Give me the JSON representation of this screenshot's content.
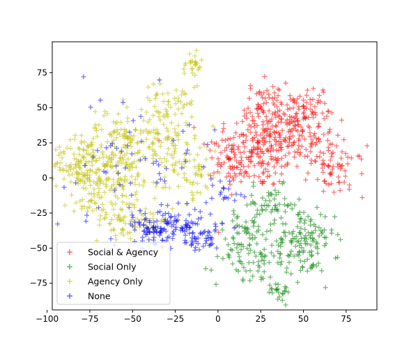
{
  "chart_data": {
    "type": "scatter",
    "title": "",
    "xlabel": "",
    "ylabel": "",
    "xlim": [
      -97,
      93
    ],
    "ylim": [
      -94,
      97
    ],
    "xticks": [
      -100,
      -75,
      -50,
      -25,
      0,
      25,
      50,
      75
    ],
    "yticks": [
      -75,
      -50,
      -25,
      0,
      25,
      50,
      75
    ],
    "xtick_labels": [
      "−100",
      "−75",
      "−50",
      "−25",
      "0",
      "25",
      "50",
      "75"
    ],
    "ytick_labels": [
      "−75",
      "−50",
      "−25",
      "0",
      "25",
      "50",
      "75"
    ],
    "marker": "+",
    "grid": false,
    "legend_position": "lower-left",
    "series": [
      {
        "name": "Social & Agency",
        "color": "#ff0000",
        "clusters": [
          {
            "cx": 22,
            "cy": 20,
            "sx": 14,
            "sy": 14,
            "n": 180
          },
          {
            "cx": 45,
            "cy": 30,
            "sx": 12,
            "sy": 14,
            "n": 150
          },
          {
            "cx": 28,
            "cy": 52,
            "sx": 6,
            "sy": 8,
            "n": 60
          },
          {
            "cx": 50,
            "cy": 48,
            "sx": 8,
            "sy": 6,
            "n": 50
          },
          {
            "cx": 70,
            "cy": 5,
            "sx": 8,
            "sy": 9,
            "n": 60
          },
          {
            "cx": 8,
            "cy": 10,
            "sx": 6,
            "sy": 8,
            "n": 30
          }
        ]
      },
      {
        "name": "Social Only",
        "color": "#008000",
        "clusters": [
          {
            "cx": 28,
            "cy": -55,
            "sx": 14,
            "sy": 11,
            "n": 120
          },
          {
            "cx": 52,
            "cy": -45,
            "sx": 8,
            "sy": 11,
            "n": 90
          },
          {
            "cx": 30,
            "cy": -20,
            "sx": 9,
            "sy": 7,
            "n": 60
          },
          {
            "cx": 15,
            "cy": -40,
            "sx": 5,
            "sy": 8,
            "n": 30
          },
          {
            "cx": 35,
            "cy": -80,
            "sx": 5,
            "sy": 4,
            "n": 20
          }
        ]
      },
      {
        "name": "Agency Only",
        "color": "#bfbf00",
        "clusters": [
          {
            "cx": -80,
            "cy": 10,
            "sx": 8,
            "sy": 10,
            "n": 120
          },
          {
            "cx": -60,
            "cy": 10,
            "sx": 10,
            "sy": 18,
            "n": 180
          },
          {
            "cx": -35,
            "cy": 30,
            "sx": 10,
            "sy": 16,
            "n": 130
          },
          {
            "cx": -50,
            "cy": -30,
            "sx": 12,
            "sy": 6,
            "n": 70
          },
          {
            "cx": -15,
            "cy": 5,
            "sx": 8,
            "sy": 10,
            "n": 60
          },
          {
            "cx": -15,
            "cy": 80,
            "sx": 3,
            "sy": 6,
            "n": 25
          },
          {
            "cx": -25,
            "cy": 58,
            "sx": 8,
            "sy": 6,
            "n": 30
          },
          {
            "cx": -75,
            "cy": -20,
            "sx": 6,
            "sy": 6,
            "n": 30
          }
        ]
      },
      {
        "name": "None",
        "color": "#0000ff",
        "clusters": [
          {
            "cx": -25,
            "cy": -35,
            "sx": 12,
            "sy": 7,
            "n": 110
          },
          {
            "cx": -10,
            "cy": -45,
            "sx": 5,
            "sy": 4,
            "n": 30
          },
          {
            "cx": -40,
            "cy": -35,
            "sx": 6,
            "sy": 5,
            "n": 30
          },
          {
            "cx": -50,
            "cy": 10,
            "sx": 25,
            "sy": 25,
            "n": 70
          },
          {
            "cx": 5,
            "cy": -10,
            "sx": 6,
            "sy": 6,
            "n": 15
          }
        ]
      }
    ]
  }
}
